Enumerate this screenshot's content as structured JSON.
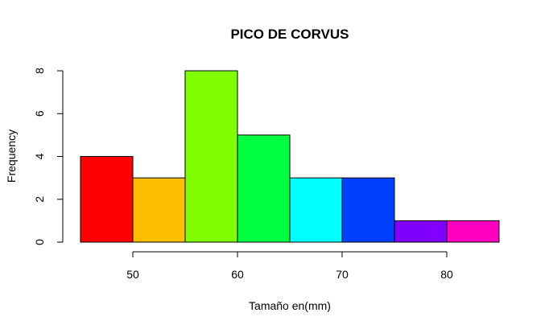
{
  "chart_data": {
    "type": "bar",
    "title": "PICO DE CORVUS",
    "xlabel": "Tamaño en(mm)",
    "ylabel": "Frequency",
    "bins": [
      [
        45,
        50
      ],
      [
        50,
        55
      ],
      [
        55,
        60
      ],
      [
        60,
        65
      ],
      [
        65,
        70
      ],
      [
        70,
        75
      ],
      [
        75,
        80
      ],
      [
        80,
        85
      ]
    ],
    "values": [
      4,
      3,
      8,
      5,
      3,
      3,
      1,
      1
    ],
    "colors": [
      "#FF0000",
      "#FFBF00",
      "#80FF00",
      "#00FF40",
      "#00FFFF",
      "#0040FF",
      "#8000FF",
      "#FF00BF"
    ],
    "xticks": [
      50,
      60,
      70,
      80
    ],
    "yticks": [
      0,
      2,
      4,
      6,
      8
    ],
    "xlim": [
      45,
      85
    ],
    "ylim": [
      0,
      8
    ],
    "grid": false,
    "legend": "none"
  }
}
